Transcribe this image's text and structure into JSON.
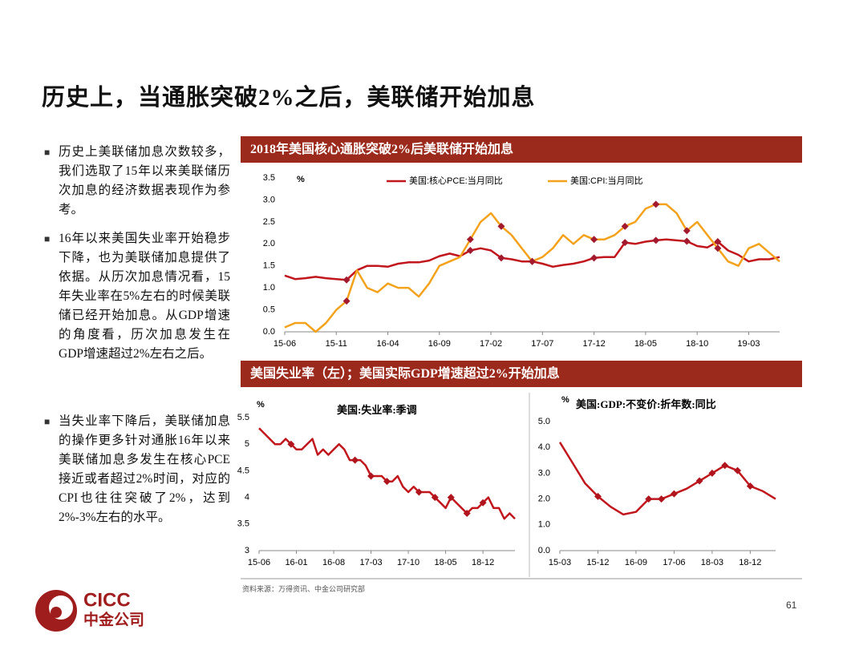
{
  "title": "历史上，当通胀突破2%之后，美联储开始加息",
  "bullets": [
    "历史上美联储加息次数较多，我们选取了15年以来美联储历次加息的经济数据表现作为参考。",
    "16年以来美国失业率开始稳步下降，也为美联储加息提供了依据。从历次加息情况看，15年失业率在5%左右的时候美联储已经开始加息。从GDP增速的角度看，历次加息发生在GDP增速超过2%左右之后。",
    "当失业率下降后，美联储加息的操作更多针对通胀16年以来美联储加息多发生在核心PCE接近或者超过2%时间，对应的CPI也往往突破了2%，达到2%-3%左右的水平。"
  ],
  "section_header": "美国失业率（左）；美国实际GDP增速超过2%开始加息",
  "source": "资料来源：万得资讯、中金公司研究部",
  "page_number": "61",
  "logo": {
    "en": "CICC",
    "zh": "中金公司"
  },
  "chart_data": [
    {
      "type": "line",
      "title": "2018年美国核心通胀突破2%后美联储开始加息",
      "y_unit": "%",
      "categories": [
        "15-06",
        null,
        null,
        null,
        null,
        "15-11",
        null,
        null,
        null,
        null,
        "16-04",
        null,
        null,
        null,
        null,
        "16-09",
        null,
        null,
        null,
        null,
        "17-02",
        null,
        null,
        null,
        null,
        "17-07",
        null,
        null,
        null,
        null,
        "17-12",
        null,
        null,
        null,
        null,
        "18-05",
        null,
        null,
        null,
        null,
        "18-10",
        null,
        null,
        null,
        null,
        "19-03",
        null,
        null,
        null
      ],
      "series": [
        {
          "name": "美国:核心PCE:当月同比",
          "color": "#c0161c",
          "values": [
            1.28,
            1.2,
            1.22,
            1.25,
            1.22,
            1.2,
            1.18,
            1.4,
            1.5,
            1.5,
            1.48,
            1.55,
            1.58,
            1.58,
            1.62,
            1.72,
            1.78,
            1.72,
            1.85,
            1.9,
            1.85,
            1.68,
            1.65,
            1.6,
            1.6,
            1.55,
            1.48,
            1.52,
            1.55,
            1.6,
            1.68,
            1.7,
            1.7,
            2.03,
            2.0,
            2.05,
            2.08,
            2.1,
            2.08,
            2.06,
            1.95,
            1.92,
            2.05,
            1.85,
            1.75,
            1.6,
            1.65,
            1.65,
            1.7
          ]
        },
        {
          "name": "美国:CPI:当月同比",
          "color": "#f4a21b",
          "values": [
            0.1,
            0.2,
            0.2,
            0.0,
            0.2,
            0.5,
            0.7,
            1.4,
            1.0,
            0.9,
            1.1,
            1.0,
            1.0,
            0.8,
            1.1,
            1.5,
            1.6,
            1.7,
            2.1,
            2.5,
            2.7,
            2.4,
            2.2,
            1.9,
            1.6,
            1.7,
            1.9,
            2.2,
            2.0,
            2.2,
            2.1,
            2.1,
            2.2,
            2.4,
            2.5,
            2.8,
            2.9,
            2.9,
            2.7,
            2.3,
            2.5,
            2.2,
            1.9,
            1.6,
            1.5,
            1.9,
            2.0,
            1.8,
            1.6
          ]
        }
      ],
      "markers": [
        6,
        18,
        21,
        24,
        30,
        33,
        36,
        39,
        42
      ],
      "marker_color": "#a31a2e",
      "ylim": [
        0,
        3.5
      ],
      "yticks": [
        {
          "value": 0,
          "label": "0.0"
        },
        0.5,
        {
          "value": 1,
          "label": "1.0"
        },
        1.5,
        {
          "value": 2,
          "label": "2.0"
        },
        2.5,
        {
          "value": 3,
          "label": "3.0"
        },
        3.5
      ],
      "legend": "top"
    },
    {
      "type": "line",
      "title": "美国:失业率:季调",
      "y_unit": "%",
      "categories": [
        "15-06",
        null,
        null,
        null,
        null,
        null,
        null,
        "16-01",
        null,
        null,
        null,
        null,
        null,
        null,
        "16-08",
        null,
        null,
        null,
        null,
        null,
        null,
        "17-03",
        null,
        null,
        null,
        null,
        null,
        null,
        "17-10",
        null,
        null,
        null,
        null,
        null,
        null,
        "18-05",
        null,
        null,
        null,
        null,
        null,
        null,
        "18-12",
        null,
        null,
        null,
        null,
        null,
        null
      ],
      "series": [
        {
          "name": "美国:失业率:季调",
          "color": "#c0161c",
          "values": [
            5.3,
            5.2,
            5.1,
            5.0,
            5.0,
            5.1,
            5.0,
            4.9,
            4.9,
            5.0,
            5.1,
            4.8,
            4.9,
            4.8,
            4.9,
            5.0,
            4.9,
            4.7,
            4.7,
            4.7,
            4.6,
            4.4,
            4.4,
            4.4,
            4.3,
            4.3,
            4.4,
            4.2,
            4.1,
            4.2,
            4.1,
            4.1,
            4.1,
            4.0,
            3.9,
            3.8,
            4.0,
            3.9,
            3.8,
            3.7,
            3.8,
            3.8,
            3.9,
            4.0,
            3.8,
            3.8,
            3.6,
            3.7,
            3.6
          ]
        }
      ],
      "markers": [
        6,
        18,
        21,
        24,
        30,
        33,
        36,
        39,
        42
      ],
      "marker_color": "#b0141c",
      "ylim": [
        3,
        5.5
      ],
      "yticks": [
        3,
        3.5,
        4,
        4.5,
        5,
        5.5
      ]
    },
    {
      "type": "line",
      "title": "美国:GDP:不变价:折年数:同比",
      "y_unit": "%",
      "categories": [
        "15-03",
        null,
        null,
        "15-12",
        null,
        null,
        "16-09",
        null,
        null,
        "17-06",
        null,
        null,
        "18-03",
        null,
        null,
        "18-12",
        null,
        null
      ],
      "series": [
        {
          "name": "美国:GDP:不变价:折年数:同比",
          "color": "#c0161c",
          "values": [
            4.2,
            3.4,
            2.6,
            2.1,
            1.7,
            1.4,
            1.5,
            2.0,
            2.0,
            2.2,
            2.4,
            2.7,
            3.0,
            3.3,
            3.1,
            2.5,
            2.3,
            2.0
          ]
        }
      ],
      "markers": [
        3,
        7,
        8,
        9,
        11,
        12,
        13,
        14,
        15
      ],
      "marker_color": "#b0141c",
      "ylim": [
        0,
        5
      ],
      "yticks": [
        {
          "value": 0,
          "label": "0.0"
        },
        {
          "value": 1,
          "label": "1.0"
        },
        {
          "value": 2,
          "label": "2.0"
        },
        {
          "value": 3,
          "label": "3.0"
        },
        {
          "value": 4,
          "label": "4.0"
        },
        {
          "value": 5,
          "label": "5.0"
        }
      ]
    }
  ]
}
